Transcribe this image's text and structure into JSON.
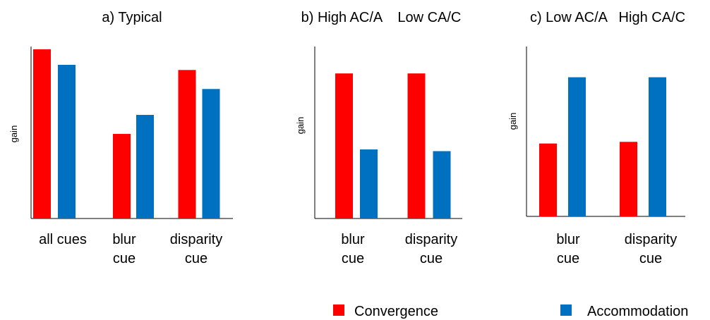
{
  "chart_data": [
    {
      "type": "bar",
      "title": "a) Typical",
      "ylabel": "gain",
      "ylim": [
        0,
        100
      ],
      "categories": [
        [
          "all cues"
        ],
        [
          "blur",
          "cue"
        ],
        [
          "disparity",
          "cue"
        ]
      ],
      "series": [
        {
          "name": "Convergence",
          "color": "#ff0000",
          "values": [
            98,
            49,
            86
          ]
        },
        {
          "name": "Accommodation",
          "color": "#0070c0",
          "values": [
            89,
            60,
            75
          ]
        }
      ]
    },
    {
      "type": "bar",
      "title": "b) High AC/A    Low CA/C",
      "ylabel": "gain",
      "ylim": [
        0,
        100
      ],
      "categories": [
        [
          "blur",
          "cue"
        ],
        [
          "disparity",
          "cue"
        ]
      ],
      "series": [
        {
          "name": "Convergence",
          "color": "#ff0000",
          "values": [
            84,
            84
          ]
        },
        {
          "name": "Accommodation",
          "color": "#0070c0",
          "values": [
            40,
            39
          ]
        }
      ]
    },
    {
      "type": "bar",
      "title": "c) Low AC/A   High CA/C",
      "ylabel": "gain",
      "ylim": [
        0,
        100
      ],
      "categories": [
        [
          "blur",
          "cue"
        ],
        [
          "disparity",
          "cue"
        ]
      ],
      "series": [
        {
          "name": "Convergence",
          "color": "#ff0000",
          "values": [
            44,
            45
          ]
        },
        {
          "name": "Accommodation",
          "color": "#0070c0",
          "values": [
            84,
            84
          ]
        }
      ]
    }
  ],
  "legend": [
    {
      "label": "Convergence",
      "color": "#ff0000"
    },
    {
      "label": "Accommodation",
      "color": "#0070c0"
    }
  ]
}
